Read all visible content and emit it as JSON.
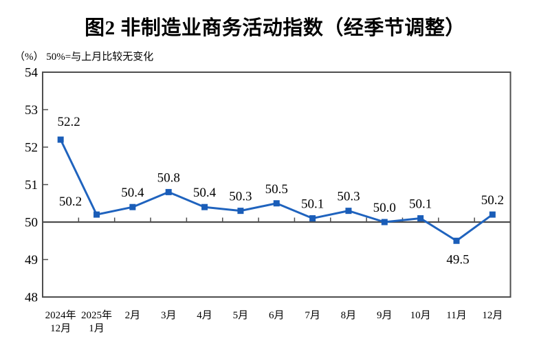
{
  "page": {
    "title": "图2  非制造业商务活动指数（经季节调整）",
    "subtitle": "（%） 50%=与上月比较无变化"
  },
  "colors": {
    "line": "#1F63BE",
    "marker": "#1A5DB8",
    "axis": "#4D4D4D",
    "reference_line": "#4D4D4D",
    "text": "#000000",
    "background": "#FFFFFF"
  },
  "chart_data": {
    "type": "line",
    "title": "图2 非制造业商务活动指数（经季节调整）",
    "subtitle": "（%）50%=与上月比较无变化",
    "categories": [
      "2024年12月",
      "2025年1月",
      "2月",
      "3月",
      "4月",
      "5月",
      "6月",
      "7月",
      "8月",
      "9月",
      "10月",
      "11月",
      "12月"
    ],
    "category_lines": [
      [
        "2024年",
        "12月"
      ],
      [
        "2025年",
        "1月"
      ],
      [
        "2月"
      ],
      [
        "3月"
      ],
      [
        "4月"
      ],
      [
        "5月"
      ],
      [
        "6月"
      ],
      [
        "7月"
      ],
      [
        "8月"
      ],
      [
        "9月"
      ],
      [
        "10月"
      ],
      [
        "11月"
      ],
      [
        "12月"
      ]
    ],
    "series": [
      {
        "name": "非制造业商务活动指数（经季节调整）",
        "values": [
          52.2,
          50.2,
          50.4,
          50.8,
          50.4,
          50.3,
          50.5,
          50.1,
          50.3,
          50.0,
          50.1,
          49.5,
          50.2
        ]
      }
    ],
    "data_labels": [
      "52.2",
      "50.2",
      "50.4",
      "50.8",
      "50.4",
      "50.3",
      "50.5",
      "50.1",
      "50.3",
      "50.0",
      "50.1",
      "49.5",
      "50.2"
    ],
    "xlabel": "",
    "ylabel": "（%）",
    "ylim": [
      48,
      54
    ],
    "yticks": [
      48,
      49,
      50,
      51,
      52,
      53,
      54
    ],
    "reference_line": 50,
    "grid": false,
    "legend_position": "none",
    "marker": "square",
    "label_offsets": {
      "0": [
        12,
        -27
      ],
      "1": [
        -38,
        -20
      ],
      "11": [
        2,
        26
      ]
    }
  }
}
